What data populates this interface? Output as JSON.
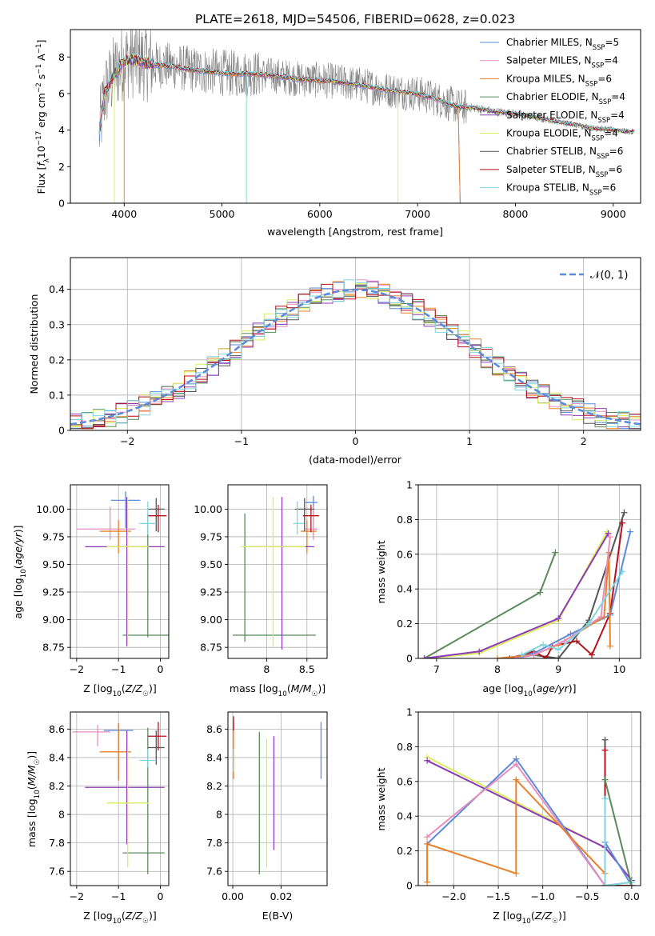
{
  "figure": {
    "title": "PLATE=2618, MJD=54506, FIBERID=0628, z=0.023",
    "colors": {
      "chabrier_miles": "#5b8bd9",
      "salpeter_miles": "#e88fbf",
      "kroupa_miles": "#e8802a",
      "chabrier_elodie": "#5a8a5a",
      "salpeter_elodie": "#8e3bb8",
      "kroupa_elodie": "#d7ef5a",
      "chabrier_stelib": "#555555",
      "salpeter_stelib": "#b5121b",
      "kroupa_stelib": "#7fd6e0",
      "data_gray": "#808080",
      "normal_curve": "#5b8bd9"
    }
  },
  "chart_data": [
    {
      "id": "spectrum",
      "type": "line",
      "xlabel": "wavelength [Angstrom, rest frame]",
      "ylabel": "Flux [fλ10⁻¹⁷ erg cm⁻² s⁻¹ A⁻¹]",
      "xlim": [
        3450,
        9280
      ],
      "ylim": [
        0,
        9.5
      ],
      "x_ticks": [
        4000,
        5000,
        6000,
        7000,
        8000,
        9000
      ],
      "y_ticks": [
        0,
        2,
        4,
        6,
        8
      ],
      "legend_position": "top-right",
      "legend": [
        {
          "key": "chabrier_miles",
          "label": "Chabrier MILES, N_SSP=5"
        },
        {
          "key": "salpeter_miles",
          "label": "Salpeter MILES, N_SSP=4"
        },
        {
          "key": "kroupa_miles",
          "label": "Kroupa MILES, N_SSP=6"
        },
        {
          "key": "chabrier_elodie",
          "label": "Chabrier ELODIE, N_SSP=4"
        },
        {
          "key": "salpeter_elodie",
          "label": "Salpeter ELODIE, N_SSP=4"
        },
        {
          "key": "kroupa_elodie",
          "label": "Kroupa ELODIE, N_SSP=4"
        },
        {
          "key": "chabrier_stelib",
          "label": "Chabrier STELIB, N_SSP=6"
        },
        {
          "key": "salpeter_stelib",
          "label": "Salpeter STELIB, N_SSP=6"
        },
        {
          "key": "kroupa_stelib",
          "label": "Kroupa STELIB, N_SSP=6"
        }
      ],
      "continuum": {
        "x": [
          3740,
          3800,
          3900,
          4000,
          4100,
          4300,
          4500,
          4700,
          4900,
          5100,
          5300,
          5500,
          5800,
          6100,
          6400,
          6700,
          7000,
          7200,
          7400,
          7600,
          7800,
          8000,
          8200,
          8400,
          8600,
          8800,
          9000,
          9200
        ],
        "y": [
          3.6,
          6.0,
          7.1,
          7.8,
          7.9,
          7.6,
          7.5,
          7.3,
          7.2,
          7.1,
          7.1,
          7.0,
          6.8,
          6.7,
          6.5,
          6.2,
          6.0,
          5.7,
          5.3,
          5.2,
          5.0,
          4.9,
          4.7,
          4.5,
          4.3,
          4.1,
          4.0,
          3.9
        ]
      }
    },
    {
      "id": "residuals",
      "type": "bar",
      "xlabel": "(data-model)/error",
      "ylabel": "Normed distribution",
      "xlim": [
        -2.5,
        2.5
      ],
      "ylim": [
        0,
        0.49
      ],
      "x_ticks": [
        -2,
        -1,
        0,
        1,
        2
      ],
      "y_ticks": [
        0.0,
        0.1,
        0.2,
        0.3,
        0.4
      ],
      "grid": true,
      "legend_position": "top-right",
      "legend_label": "𝒩(0, 1)",
      "bin_width": 0.1
    },
    {
      "id": "age_vs_Z",
      "type": "scatter",
      "xlabel": "Z [log10(Z/Z☉)]",
      "ylabel": "age  [log10(age/yr)]",
      "xlim": [
        -2.15,
        0.2
      ],
      "ylim": [
        8.65,
        10.22
      ],
      "x_ticks": [
        -2,
        -1,
        0
      ],
      "y_ticks": [
        8.75,
        9.0,
        9.25,
        9.5,
        9.75,
        10.0
      ],
      "y_tick_labels": [
        "8.75",
        "9.00",
        "9.25",
        "9.50",
        "9.75",
        "10.00"
      ],
      "grid": true,
      "points": [
        {
          "key": "chabrier_miles",
          "x": -0.83,
          "xerr": [
            0.35,
            0.35
          ],
          "y": 10.08,
          "yerr": [
            0.25,
            0.08
          ]
        },
        {
          "key": "salpeter_miles",
          "x": -1.2,
          "xerr": [
            0.8,
            0.6
          ],
          "y": 9.82,
          "yerr": [
            0.1,
            0.2
          ]
        },
        {
          "key": "kroupa_miles",
          "x": -1.0,
          "xerr": [
            0.45,
            0.3
          ],
          "y": 9.8,
          "yerr": [
            0.2,
            0.1
          ]
        },
        {
          "key": "chabrier_elodie",
          "x": -0.3,
          "xerr": [
            0.6,
            0.6
          ],
          "y": 8.86,
          "yerr": [
            0.02,
            1.1
          ]
        },
        {
          "key": "salpeter_elodie",
          "x": -0.8,
          "xerr": [
            1.0,
            0.9
          ],
          "y": 9.66,
          "yerr": [
            0.9,
            0.45
          ]
        },
        {
          "key": "kroupa_elodie",
          "x": -0.78,
          "xerr": [
            0.5,
            0.5
          ],
          "y": 9.66,
          "yerr": [
            0.9,
            0.45
          ]
        },
        {
          "key": "chabrier_stelib",
          "x": -0.1,
          "xerr": [
            0.2,
            0.2
          ],
          "y": 10.0,
          "yerr": [
            0.2,
            0.1
          ]
        },
        {
          "key": "salpeter_stelib",
          "x": -0.05,
          "xerr": [
            0.25,
            0.2
          ],
          "y": 9.94,
          "yerr": [
            0.15,
            0.1
          ]
        },
        {
          "key": "kroupa_stelib",
          "x": -0.3,
          "xerr": [
            0.2,
            0.2
          ],
          "y": 9.87,
          "yerr": [
            0.1,
            0.2
          ]
        }
      ]
    },
    {
      "id": "age_vs_mass",
      "type": "scatter",
      "xlabel": "mass [log10(M/M☉)]",
      "xlim": [
        7.52,
        8.75
      ],
      "ylim": [
        8.65,
        10.22
      ],
      "x_ticks": [
        8.0,
        8.5
      ],
      "y_ticks": [
        8.75,
        9.0,
        9.25,
        9.5,
        9.75,
        10.0
      ],
      "y_tick_labels": [
        "8.75",
        "9.00",
        "9.25",
        "9.50",
        "9.75",
        "10.00"
      ],
      "grid": true,
      "points": [
        {
          "key": "chabrier_miles",
          "x": 8.58,
          "xerr": [
            0.1,
            0.05
          ],
          "y": 10.06,
          "yerr": [
            0.3,
            0.06
          ]
        },
        {
          "key": "salpeter_miles",
          "x": 8.58,
          "xerr": [
            0.1,
            0.05
          ],
          "y": 9.82,
          "yerr": [
            0.1,
            0.2
          ]
        },
        {
          "key": "kroupa_miles",
          "x": 8.5,
          "xerr": [
            0.08,
            0.12
          ],
          "y": 9.8,
          "yerr": [
            0.2,
            0.1
          ]
        },
        {
          "key": "chabrier_elodie",
          "x": 7.73,
          "xerr": [
            0.15,
            0.88
          ],
          "y": 8.86,
          "yerr": [
            0.06,
            1.1
          ]
        },
        {
          "key": "salpeter_elodie",
          "x": 8.19,
          "xerr": [
            0.4,
            0.4
          ],
          "y": 9.66,
          "yerr": [
            0.93,
            0.45
          ]
        },
        {
          "key": "kroupa_elodie",
          "x": 8.08,
          "xerr": [
            0.4,
            0.4
          ],
          "y": 9.66,
          "yerr": [
            0.9,
            0.45
          ]
        },
        {
          "key": "chabrier_stelib",
          "x": 8.47,
          "xerr": [
            0.12,
            0.12
          ],
          "y": 10.0,
          "yerr": [
            0.2,
            0.1
          ]
        },
        {
          "key": "salpeter_stelib",
          "x": 8.55,
          "xerr": [
            0.1,
            0.1
          ],
          "y": 9.94,
          "yerr": [
            0.15,
            0.1
          ]
        },
        {
          "key": "kroupa_stelib",
          "x": 8.38,
          "xerr": [
            0.05,
            0.08
          ],
          "y": 9.87,
          "yerr": [
            0.1,
            0.2
          ]
        }
      ]
    },
    {
      "id": "massweight_vs_age",
      "type": "line",
      "xlabel": "age  [log10(age/yr)]",
      "ylabel": "mass weight",
      "xlim": [
        6.7,
        10.35
      ],
      "ylim": [
        0,
        1.0
      ],
      "x_ticks": [
        7,
        8,
        9,
        10
      ],
      "y_ticks": [
        0.0,
        0.2,
        0.4,
        0.6,
        0.8,
        1.0
      ],
      "grid": true,
      "series": [
        {
          "key": "chabrier_elodie",
          "x": [
            6.8,
            8.7,
            8.95
          ],
          "y": [
            0.0,
            0.38,
            0.61
          ]
        },
        {
          "key": "kroupa_elodie",
          "x": [
            6.8,
            7.7,
            9.0,
            9.8
          ],
          "y": [
            0.0,
            0.03,
            0.22,
            0.73
          ]
        },
        {
          "key": "salpeter_elodie",
          "x": [
            6.8,
            7.7,
            9.0,
            9.82
          ],
          "y": [
            0.0,
            0.04,
            0.23,
            0.72
          ]
        },
        {
          "key": "chabrier_stelib",
          "x": [
            8.6,
            9.0,
            9.5,
            10.08
          ],
          "y": [
            0.02,
            0.0,
            0.22,
            0.84
          ]
        },
        {
          "key": "salpeter_stelib",
          "x": [
            8.2,
            8.6,
            8.8,
            8.9,
            9.3,
            9.55,
            9.85,
            10.05
          ],
          "y": [
            0.0,
            0.04,
            0.0,
            0.07,
            0.1,
            0.02,
            0.26,
            0.78
          ]
        },
        {
          "key": "chabrier_miles",
          "x": [
            8.3,
            8.6,
            9.2,
            9.85,
            10.18
          ],
          "y": [
            0.0,
            0.03,
            0.14,
            0.25,
            0.73
          ]
        },
        {
          "key": "kroupa_miles",
          "x": [
            8.0,
            8.6,
            9.0,
            9.75,
            9.83,
            9.85
          ],
          "y": [
            0.0,
            0.02,
            0.08,
            0.24,
            0.61,
            0.07
          ]
        },
        {
          "key": "salpeter_miles",
          "x": [
            8.3,
            8.6,
            9.1,
            9.7,
            9.85
          ],
          "y": [
            0.0,
            0.02,
            0.1,
            0.24,
            0.7
          ]
        },
        {
          "key": "kroupa_stelib",
          "x": [
            8.4,
            8.75,
            9.0,
            9.5,
            10.05
          ],
          "y": [
            0.02,
            0.08,
            0.05,
            0.2,
            0.5
          ]
        }
      ]
    },
    {
      "id": "mass_vs_Z",
      "type": "scatter",
      "xlabel": "Z [log10(Z/Z☉)]",
      "ylabel": "mass [log10(M/M☉)]",
      "xlim": [
        -2.15,
        0.2
      ],
      "ylim": [
        7.5,
        8.72
      ],
      "x_ticks": [
        -2,
        -1,
        0
      ],
      "y_ticks": [
        7.6,
        7.8,
        8.0,
        8.2,
        8.4,
        8.6
      ],
      "grid": true,
      "points": [
        {
          "key": "chabrier_miles",
          "x": -1.0,
          "xerr": [
            0.35,
            0.35
          ],
          "y": 8.59,
          "yerr": [
            0.35,
            0.05
          ]
        },
        {
          "key": "salpeter_miles",
          "x": -1.5,
          "xerr": [
            0.6,
            0.3
          ],
          "y": 8.58,
          "yerr": [
            0.1,
            0.05
          ]
        },
        {
          "key": "kroupa_miles",
          "x": -1.0,
          "xerr": [
            0.45,
            0.3
          ],
          "y": 8.44,
          "yerr": [
            0.2,
            0.2
          ]
        },
        {
          "key": "chabrier_elodie",
          "x": -0.3,
          "xerr": [
            0.6,
            0.4
          ],
          "y": 7.73,
          "yerr": [
            0.15,
            0.88
          ]
        },
        {
          "key": "salpeter_elodie",
          "x": -0.8,
          "xerr": [
            1.0,
            0.9
          ],
          "y": 8.19,
          "yerr": [
            0.4,
            0.4
          ]
        },
        {
          "key": "kroupa_elodie",
          "x": -0.78,
          "xerr": [
            0.5,
            0.5
          ],
          "y": 8.08,
          "yerr": [
            0.45,
            0.4
          ]
        },
        {
          "key": "chabrier_stelib",
          "x": -0.1,
          "xerr": [
            0.2,
            0.2
          ],
          "y": 8.47,
          "yerr": [
            0.12,
            0.12
          ]
        },
        {
          "key": "salpeter_stelib",
          "x": -0.05,
          "xerr": [
            0.25,
            0.2
          ],
          "y": 8.55,
          "yerr": [
            0.1,
            0.1
          ]
        },
        {
          "key": "kroupa_stelib",
          "x": -0.3,
          "xerr": [
            0.2,
            0.2
          ],
          "y": 8.38,
          "yerr": [
            0.05,
            0.08
          ]
        }
      ]
    },
    {
      "id": "mass_vs_ebv",
      "type": "scatter",
      "xlabel": "E(B-V)",
      "xlim": [
        -0.002,
        0.039
      ],
      "ylim": [
        7.5,
        8.72
      ],
      "x_ticks": [
        0.0,
        0.02
      ],
      "x_tick_labels": [
        "0.00",
        "0.02"
      ],
      "y_ticks": [
        7.6,
        7.8,
        8.0,
        8.2,
        8.4,
        8.6
      ],
      "grid": true,
      "points": [
        {
          "key": "chabrier_miles",
          "x": 0.0365,
          "y": 8.45,
          "yerr": [
            0.2,
            0.2
          ]
        },
        {
          "key": "kroupa_miles",
          "x": 0.0003,
          "y": 8.45,
          "yerr": [
            0.2,
            0.2
          ]
        },
        {
          "key": "salpeter_stelib",
          "x": 0.0003,
          "y": 8.64,
          "yerr": [
            0.05,
            0.05
          ]
        },
        {
          "key": "chabrier_elodie",
          "x": 0.011,
          "y": 8.08,
          "yerr": [
            0.5,
            0.5
          ]
        },
        {
          "key": "kroupa_elodie",
          "x": 0.014,
          "y": 8.08,
          "yerr": [
            0.45,
            0.45
          ]
        },
        {
          "key": "salpeter_elodie",
          "x": 0.017,
          "y": 8.15,
          "yerr": [
            0.4,
            0.4
          ]
        },
        {
          "key": "kroupa_stelib",
          "x": 0.0002,
          "y": 8.38,
          "yerr": [
            0.08,
            0.08
          ]
        }
      ]
    },
    {
      "id": "massweight_vs_Z",
      "type": "line",
      "xlabel": "Z [log10(Z/Z☉)]",
      "ylabel": "mass weight",
      "xlim": [
        -2.4,
        0.1
      ],
      "ylim": [
        0,
        1.0
      ],
      "x_ticks": [
        -2.0,
        -1.5,
        -1.0,
        -0.5,
        0.0
      ],
      "x_tick_labels": [
        "-2.0",
        "-1.5",
        "-1.0",
        "-0.5",
        "0.0"
      ],
      "y_ticks": [
        0.0,
        0.2,
        0.4,
        0.6,
        0.8,
        1.0
      ],
      "grid": true,
      "series": [
        {
          "key": "kroupa_elodie",
          "x": [
            -2.3,
            -0.3,
            0.0
          ],
          "y": [
            0.74,
            0.22,
            0.03
          ]
        },
        {
          "key": "salpeter_elodie",
          "x": [
            -2.3,
            -0.3,
            0.0
          ],
          "y": [
            0.72,
            0.22,
            0.03
          ]
        },
        {
          "key": "chabrier_miles",
          "x": [
            -2.3,
            -1.3,
            -0.3,
            -0.3,
            0.0
          ],
          "y": [
            0.24,
            0.73,
            0.0,
            0.25,
            0.0
          ]
        },
        {
          "key": "salpeter_miles",
          "x": [
            -2.3,
            -1.3,
            -0.3,
            0.0
          ],
          "y": [
            0.28,
            0.7,
            0.0,
            0.02
          ]
        },
        {
          "key": "kroupa_miles",
          "x": [
            -2.3,
            -2.3,
            -1.3,
            -1.3,
            -0.3,
            -0.3
          ],
          "y": [
            0.02,
            0.24,
            0.07,
            0.61,
            0.07,
            0.0
          ]
        },
        {
          "key": "chabrier_stelib",
          "x": [
            -0.3,
            -0.3,
            0.0
          ],
          "y": [
            0.84,
            0.0,
            0.0
          ]
        },
        {
          "key": "salpeter_stelib",
          "x": [
            -0.3,
            -0.3,
            0.0
          ],
          "y": [
            0.78,
            0.0,
            0.0
          ]
        },
        {
          "key": "kroupa_stelib",
          "x": [
            -0.3,
            -0.3,
            0.0
          ],
          "y": [
            0.5,
            0.0,
            0.02
          ]
        },
        {
          "key": "chabrier_elodie",
          "x": [
            -0.3,
            0.0
          ],
          "y": [
            0.61,
            0.0
          ]
        }
      ]
    }
  ]
}
